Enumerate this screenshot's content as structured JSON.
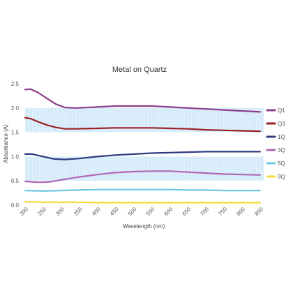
{
  "chart_data": {
    "type": "line",
    "title": "Metal on Quartz",
    "xlabel": "Wavelength (nm)",
    "ylabel": "Absorbance (A)",
    "xlim": [
      200,
      860
    ],
    "ylim": [
      0,
      2.5
    ],
    "xticks": [
      200,
      250,
      300,
      350,
      400,
      450,
      500,
      550,
      600,
      650,
      700,
      750,
      800,
      850
    ],
    "yticks": [
      "0.0",
      "0.5",
      "1.0",
      "1.5",
      "2.0",
      "2.5"
    ],
    "legend_position": "right",
    "band_color": "#d6ecfa",
    "series": [
      {
        "name": "Q1",
        "color": "#8e3b8e",
        "x": [
          200,
          215,
          235,
          260,
          285,
          310,
          340,
          400,
          450,
          500,
          550,
          600,
          650,
          700,
          750,
          800,
          850
        ],
        "y": [
          2.38,
          2.39,
          2.32,
          2.2,
          2.08,
          2.01,
          2.0,
          2.02,
          2.04,
          2.04,
          2.04,
          2.02,
          2.0,
          1.98,
          1.96,
          1.94,
          1.92
        ]
      },
      {
        "name": "Q3",
        "color": "#9b1f24",
        "x": [
          200,
          215,
          235,
          260,
          285,
          310,
          340,
          400,
          450,
          500,
          550,
          600,
          650,
          700,
          750,
          800,
          850
        ],
        "y": [
          1.8,
          1.78,
          1.72,
          1.65,
          1.6,
          1.57,
          1.57,
          1.58,
          1.59,
          1.59,
          1.59,
          1.58,
          1.57,
          1.55,
          1.54,
          1.53,
          1.52
        ]
      },
      {
        "name": "1Q",
        "color": "#2e3a7e",
        "x": [
          200,
          220,
          250,
          280,
          310,
          350,
          400,
          450,
          500,
          550,
          600,
          650,
          700,
          750,
          800,
          850
        ],
        "y": [
          1.05,
          1.05,
          1.0,
          0.95,
          0.94,
          0.96,
          1.0,
          1.03,
          1.05,
          1.07,
          1.08,
          1.09,
          1.1,
          1.1,
          1.1,
          1.1
        ]
      },
      {
        "name": "3Q",
        "color": "#b066b6",
        "x": [
          200,
          215,
          240,
          270,
          300,
          350,
          400,
          450,
          500,
          550,
          600,
          650,
          700,
          750,
          800,
          850
        ],
        "y": [
          0.49,
          0.48,
          0.47,
          0.48,
          0.52,
          0.58,
          0.63,
          0.67,
          0.69,
          0.7,
          0.7,
          0.68,
          0.66,
          0.64,
          0.63,
          0.62
        ]
      },
      {
        "name": "5Q",
        "color": "#6cc8e6",
        "x": [
          200,
          250,
          300,
          350,
          400,
          450,
          500,
          550,
          600,
          650,
          700,
          750,
          800,
          850
        ],
        "y": [
          0.3,
          0.29,
          0.3,
          0.31,
          0.32,
          0.32,
          0.32,
          0.32,
          0.32,
          0.31,
          0.31,
          0.3,
          0.3,
          0.3
        ]
      },
      {
        "name": "9Q",
        "color": "#f2dc3b",
        "x": [
          200,
          250,
          300,
          350,
          400,
          450,
          500,
          550,
          600,
          650,
          700,
          750,
          800,
          850
        ],
        "y": [
          0.07,
          0.06,
          0.06,
          0.06,
          0.05,
          0.05,
          0.05,
          0.05,
          0.05,
          0.05,
          0.05,
          0.05,
          0.05,
          0.05
        ]
      }
    ]
  }
}
